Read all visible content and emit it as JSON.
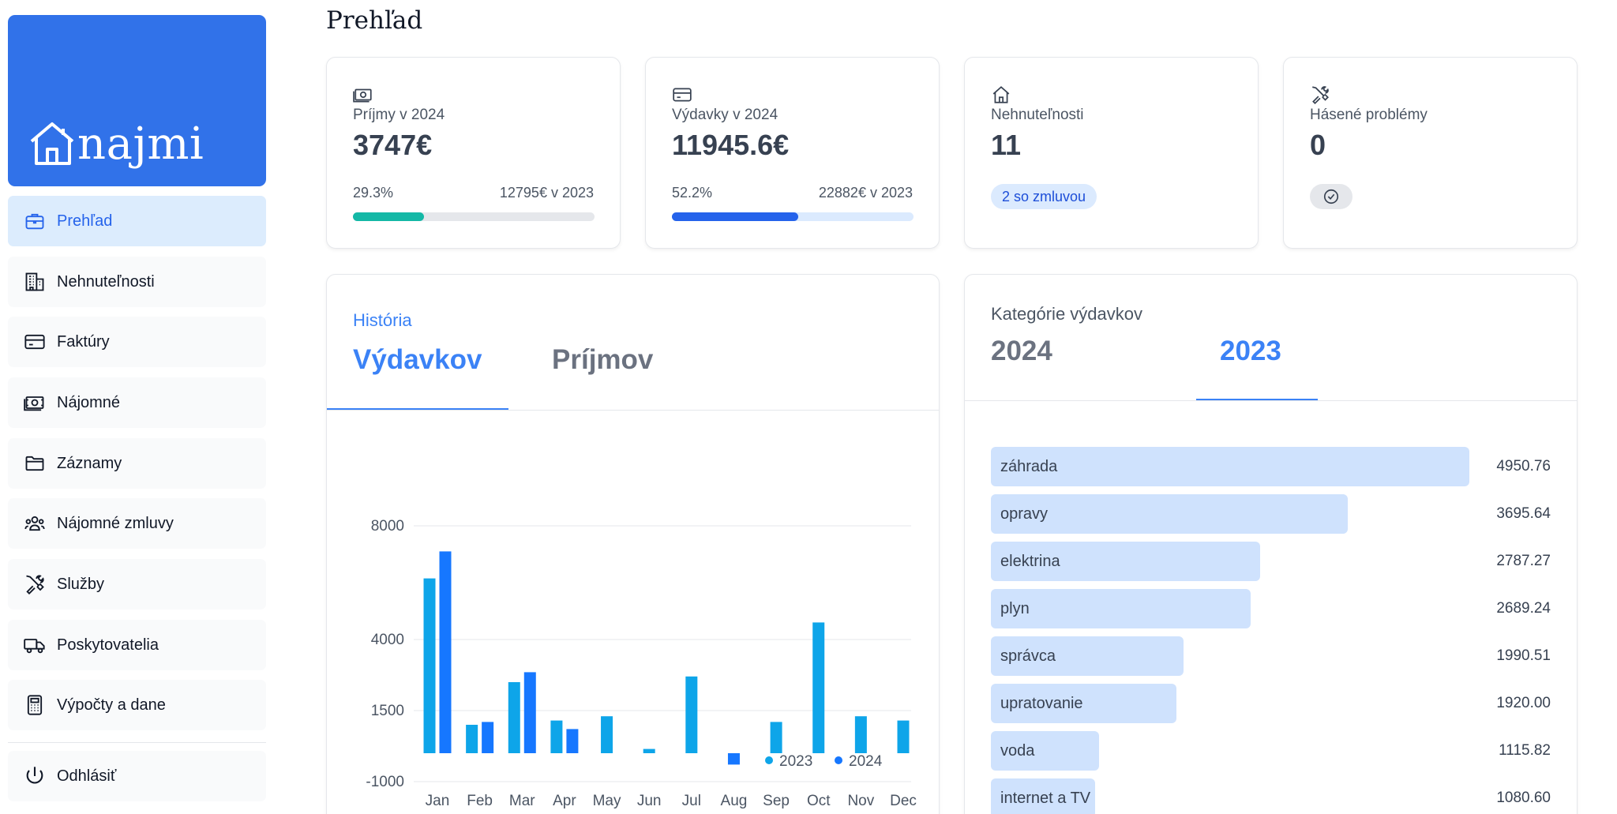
{
  "logo": {
    "text": "najmi"
  },
  "sidebar": {
    "items": [
      {
        "label": "Prehľad",
        "icon": "briefcase-icon",
        "active": true
      },
      {
        "label": "Nehnuteľnosti",
        "icon": "building-icon"
      },
      {
        "label": "Faktúry",
        "icon": "credit-card-icon"
      },
      {
        "label": "Nájomné",
        "icon": "cash-icon"
      },
      {
        "label": "Záznamy",
        "icon": "folder-icon"
      },
      {
        "label": "Nájomné zmluvy",
        "icon": "users-icon"
      },
      {
        "label": "Služby",
        "icon": "tools-icon"
      },
      {
        "label": "Poskytovatelia",
        "icon": "truck-icon"
      },
      {
        "label": "Výpočty a dane",
        "icon": "calculator-icon"
      }
    ],
    "logout": {
      "label": "Odhlásiť",
      "icon": "power-icon"
    }
  },
  "page": {
    "title": "Prehľad"
  },
  "stats": {
    "income": {
      "icon": "cash-icon",
      "label": "Príjmy v 2024",
      "value": "3747€",
      "pct": "29.3%",
      "pct_value": 0.293,
      "prev": "12795€ v 2023",
      "fill_color": "#14b8a6",
      "track_color": "#e5e7eb"
    },
    "expenses": {
      "icon": "credit-card-icon",
      "label": "Výdavky v 2024",
      "value": "11945.6€",
      "pct": "52.2%",
      "pct_value": 0.522,
      "prev": "22882€ v 2023",
      "fill_color": "#2563eb",
      "track_color": "#dbeafe"
    },
    "properties": {
      "icon": "home-icon",
      "label": "Nehnuteľnosti",
      "value": "11",
      "badge": "2 so zmluvou"
    },
    "issues": {
      "icon": "tools-icon",
      "label": "Hásené problémy",
      "value": "0",
      "badge_icon": "check-circle-icon"
    }
  },
  "history": {
    "subtitle": "História",
    "tabs": [
      {
        "label": "Výdavkov",
        "active": true
      },
      {
        "label": "Príjmov",
        "active": false
      }
    ]
  },
  "chart_data": {
    "type": "bar",
    "categories": [
      "Jan",
      "Feb",
      "Mar",
      "Apr",
      "May",
      "Jun",
      "Jul",
      "Aug",
      "Sep",
      "Oct",
      "Nov",
      "Dec"
    ],
    "series": [
      {
        "name": "2023",
        "color": "#0ea5e9",
        "values": [
          6150,
          1000,
          2500,
          1150,
          1300,
          150,
          2700,
          null,
          1100,
          4600,
          1300,
          1150
        ]
      },
      {
        "name": "2024",
        "color": "#1677ff",
        "values": [
          7100,
          1100,
          2850,
          850,
          null,
          null,
          null,
          -400,
          null,
          null,
          null,
          null
        ]
      }
    ],
    "yticks": [
      8000,
      4000,
      1500,
      -1000
    ],
    "yticks_text": [
      "8000",
      "4000",
      "1500",
      "-1000"
    ],
    "ylim": [
      -1000,
      8000
    ],
    "legend": "top-right",
    "grid": true
  },
  "categories": {
    "subtitle": "Kategórie výdavkov",
    "tabs": [
      {
        "label": "2024",
        "active": false
      },
      {
        "label": "2023",
        "active": true
      }
    ],
    "items": [
      {
        "name": "záhrada",
        "value": 4950.76,
        "value_text": "4950.76"
      },
      {
        "name": "opravy",
        "value": 3695.64,
        "value_text": "3695.64"
      },
      {
        "name": "elektrina",
        "value": 2787.27,
        "value_text": "2787.27"
      },
      {
        "name": "plyn",
        "value": 2689.24,
        "value_text": "2689.24"
      },
      {
        "name": "správca",
        "value": 1990.51,
        "value_text": "1990.51"
      },
      {
        "name": "upratovanie",
        "value": 1920.0,
        "value_text": "1920.00"
      },
      {
        "name": "voda",
        "value": 1115.82,
        "value_text": "1115.82"
      },
      {
        "name": "internet a TV",
        "value": 1080.6,
        "value_text": "1080.60"
      }
    ]
  }
}
